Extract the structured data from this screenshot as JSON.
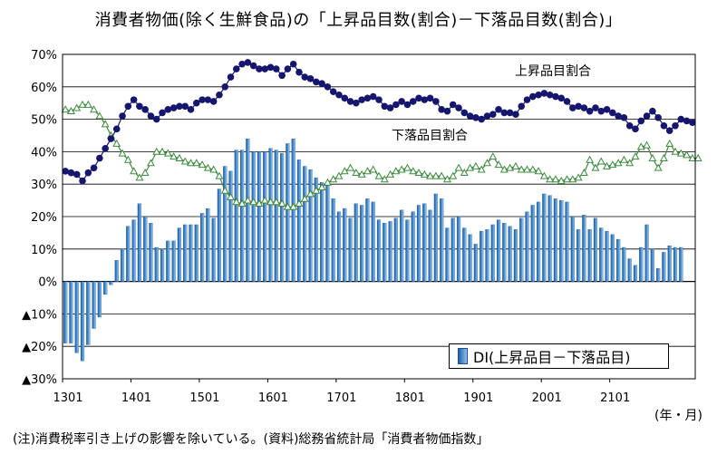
{
  "title": "消費者物価(除く生鮮食品)の「上昇品目数(割合)－下落品目数(割合)」",
  "footnote": "(注)消費税率引き上げの影響を除いている。(資料)総務省統計局「消費者物価指数」",
  "unit_label": "(年・月)",
  "legend": {
    "di": "DI(上昇品目－下落品目)"
  },
  "labels": {
    "up": "上昇品目割合",
    "down": "下落品目割合"
  },
  "colors": {
    "up_line": "#16166e",
    "down_line": "#3d8a3d",
    "bar": "#2a6fb5",
    "grid": "#000000"
  },
  "chart_data": {
    "type": "bar+line",
    "title": "消費者物価(除く生鮮食品)の「上昇品目数(割合)－下落品目数(割合)」",
    "xlabel": "(年・月)",
    "ylabel": "",
    "ylim": [
      -30,
      70
    ],
    "yticks": [
      -30,
      -20,
      -10,
      0,
      10,
      20,
      30,
      40,
      50,
      60,
      70
    ],
    "ytick_labels": [
      "▲30%",
      "▲20%",
      "▲10%",
      "0%",
      "10%",
      "20%",
      "30%",
      "40%",
      "50%",
      "60%",
      "70%"
    ],
    "xtick_labels": [
      "1301",
      "1401",
      "1501",
      "1601",
      "1701",
      "1801",
      "1901",
      "2001",
      "2101"
    ],
    "x_start": "2013-01",
    "x_end": "2021-06",
    "grid": true,
    "series": [
      {
        "name": "上昇品目割合",
        "type": "line",
        "marker": "filled-circle",
        "values": [
          34,
          33.5,
          33,
          31,
          33.5,
          35,
          38,
          41,
          44,
          47,
          51,
          54,
          56,
          54,
          53,
          51,
          50,
          52,
          53,
          53.5,
          54,
          54,
          53,
          55,
          56,
          56,
          55.5,
          57.5,
          60,
          63,
          65.5,
          67,
          67.5,
          66.5,
          65.5,
          65.5,
          66,
          65.5,
          63.5,
          65.5,
          67,
          64.5,
          63,
          62.5,
          61.5,
          61,
          60,
          58.5,
          57.5,
          56.5,
          55.5,
          55,
          56,
          56.5,
          57,
          56,
          54,
          53.5,
          54.5,
          55.5,
          54.5,
          55.5,
          56.5,
          56,
          56.5,
          55.5,
          53,
          52.5,
          54.5,
          53.5,
          52,
          51,
          50.5,
          50,
          51,
          51.5,
          53,
          52,
          52,
          51.5,
          54,
          56,
          57,
          57.5,
          58,
          57.5,
          57,
          56.5,
          55.5,
          53.5,
          54,
          53.5,
          52.5,
          53.5,
          52.5,
          53,
          52,
          51,
          50.5,
          48,
          47,
          49.5,
          51,
          52.5,
          50.5,
          48,
          46.5,
          48,
          50,
          49.5,
          49
        ]
      },
      {
        "name": "下落品目割合",
        "type": "line",
        "marker": "open-triangle",
        "values": [
          53,
          52.5,
          53.5,
          54.5,
          54.5,
          53,
          51,
          48.5,
          45,
          42.5,
          39.5,
          37.5,
          34,
          32,
          33.5,
          36.5,
          40,
          40,
          39.5,
          38.5,
          38,
          37,
          36.5,
          36.5,
          36,
          35,
          34.5,
          32.5,
          28,
          26,
          24.5,
          24,
          25,
          24.5,
          24,
          25,
          24.5,
          24.5,
          24,
          23,
          23,
          24,
          25.5,
          27,
          28,
          29,
          30.5,
          31.5,
          32.5,
          34,
          35,
          33.5,
          33,
          34,
          34.5,
          32.5,
          31.5,
          33,
          34,
          34.5,
          35,
          34,
          33.5,
          33,
          32.5,
          32.5,
          32.5,
          31.5,
          32.5,
          35,
          33.5,
          35,
          35.5,
          34.5,
          36.5,
          38.5,
          36,
          34.5,
          35,
          35.5,
          34.5,
          34.5,
          34.5,
          34,
          32.5,
          31.5,
          31.5,
          31,
          31.5,
          31.5,
          32,
          33.5,
          37.5,
          35,
          37,
          35.5,
          36,
          36.5,
          37.5,
          36.5,
          38.5,
          41.5,
          42,
          38,
          35,
          38,
          42.5,
          40,
          39.5,
          39,
          38,
          38
        ]
      },
      {
        "name": "DI(上昇品目－下落品目)",
        "type": "bar",
        "values": [
          -19,
          -19,
          -22,
          -24.5,
          -19.5,
          -14.5,
          -11,
          -4,
          -1,
          6.5,
          10,
          17,
          19,
          24,
          20,
          18,
          10.5,
          10,
          12.5,
          12.5,
          16.5,
          17.5,
          17.5,
          17.5,
          21,
          22.5,
          19.5,
          28.5,
          35.5,
          34,
          40.5,
          40.5,
          44,
          40,
          40,
          40,
          41,
          40.5,
          39.5,
          42.5,
          44,
          37.5,
          35.5,
          34.5,
          32,
          30.5,
          30,
          25.5,
          21.5,
          22.5,
          19.5,
          24,
          23.5,
          25.5,
          24.5,
          19,
          18,
          18.5,
          19.5,
          22,
          19,
          21.5,
          23.5,
          24,
          22,
          27,
          25.5,
          16.5,
          19.5,
          20,
          16.5,
          14.5,
          11.5,
          15.5,
          16,
          17.5,
          19,
          18,
          17,
          16,
          19.5,
          21.5,
          23.5,
          24.5,
          27,
          26.5,
          25.5,
          25,
          24.5,
          20,
          16,
          20.5,
          16,
          19.5,
          16.5,
          15.5,
          14.5,
          13,
          10.5,
          7,
          5,
          10.5,
          17.5,
          10,
          4,
          9,
          11,
          10.5,
          10.5
        ]
      }
    ]
  }
}
